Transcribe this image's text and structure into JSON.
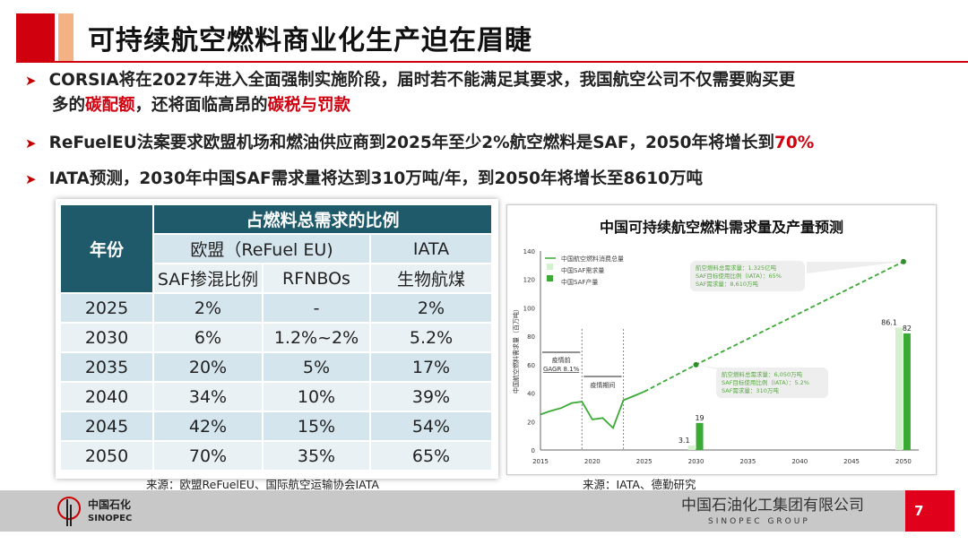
{
  "title": "可持续航空燃料商业化生产迫在眉睫",
  "bullets": [
    {
      "pre": "CORSIA将在2027年进入全面强制实施阶段，届时若不能满足其要求，我国航空公司不仅需要购买更",
      "line2a": "多的",
      "hl1": "碳配额",
      "line2b": "，还将面临高昂的",
      "hl2": "碳税与罚款"
    },
    {
      "pre": "ReFuelEU法案要求欧盟机场和燃油供应商到2025年至少2%航空燃料是SAF，2050年将增长到",
      "hl": "70%"
    },
    {
      "pre": "IATA预测，2030年中国SAF需求量将达到310万吨/年，到2050年将增长至8610万吨"
    }
  ],
  "table": {
    "year_header": "年份",
    "group_header": "占燃料总需求的比例",
    "eu_header": "欧盟（ReFuel EU)",
    "iata_header": "IATA",
    "sub_headers": [
      "SAF掺混比例",
      "RFNBOs",
      "生物航煤"
    ],
    "rows": [
      [
        "2025",
        "2%",
        "-",
        "2%"
      ],
      [
        "2030",
        "6%",
        "1.2%~2%",
        "5.2%"
      ],
      [
        "2035",
        "20%",
        "5%",
        "17%"
      ],
      [
        "2040",
        "34%",
        "10%",
        "39%"
      ],
      [
        "2045",
        "42%",
        "15%",
        "54%"
      ],
      [
        "2050",
        "70%",
        "35%",
        "65%"
      ]
    ]
  },
  "chart_data": {
    "type": "line+bar",
    "title": "中国可持续航空燃料需求量及产量预测",
    "ylabel": "中国航空燃料需求量（百万吨）",
    "xlim": [
      2015,
      2051
    ],
    "ylim": [
      0,
      140
    ],
    "xticks": [
      "2015",
      "2020",
      "2025",
      "2030",
      "2035",
      "2040",
      "2045",
      "2050"
    ],
    "yticks": [
      "0",
      "20",
      "40",
      "60",
      "80",
      "100",
      "120",
      "140"
    ],
    "legend": [
      "中国航空燃料消费总量",
      "中国SAF需求量",
      "中国SAF产量"
    ],
    "legend_position": "top-left",
    "line_actual": {
      "x": [
        2015,
        2016,
        2017,
        2018,
        2019,
        2020,
        2021,
        2022,
        2023,
        2024,
        2025
      ],
      "y": [
        25,
        27.5,
        29.5,
        33,
        34,
        21.5,
        22.5,
        15.5,
        35,
        38,
        41
      ]
    },
    "line_forecast": {
      "x": [
        2025,
        2030,
        2050
      ],
      "y": [
        41,
        60,
        132.5
      ]
    },
    "bars": [
      {
        "x": 2030,
        "demand": 3.1,
        "production": 19,
        "demand_label": "3.1",
        "production_label": "19"
      },
      {
        "x": 2050,
        "demand": 86.1,
        "production": 82,
        "demand_label": "86.1",
        "production_label": "82"
      }
    ],
    "annotations": {
      "pre": [
        "疫情前",
        "GAGR 8.1%"
      ],
      "during": "疫情期间",
      "box2030": [
        "航空燃料总需求量：6,050万吨",
        "SAF目标使用比例（IATA）：5.2%",
        "SAF需求量：310万吨"
      ],
      "box2050": [
        "航空燃料总需求量：1.325亿吨",
        "SAF目标使用比例（IATA）：65%",
        "SAF需求量：8,610万吨"
      ]
    },
    "colors": {
      "line": "#3aaa35",
      "demand": "#d5f0cf",
      "production": "#3aaa35",
      "annot_text": "#5aa845"
    }
  },
  "sources": {
    "left": "来源：欧盟ReFuelEU、国际航空运输协会IATA",
    "right": "来源：IATA、德勤研究"
  },
  "footer": {
    "logo_cn": "中国石化",
    "logo_en": "SINOPEC",
    "company_cn": "中国石油化工集团有限公司",
    "company_en": "SINOPEC GROUP",
    "page": "7"
  }
}
